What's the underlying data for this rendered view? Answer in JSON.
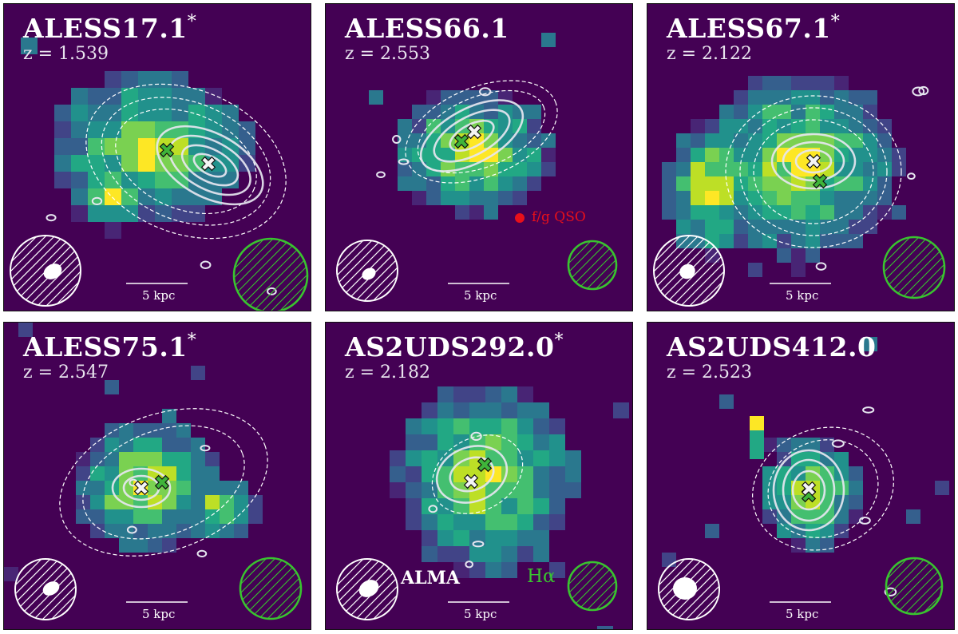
{
  "figure": {
    "panels": [
      {
        "name": "ALESS17.1",
        "star": "*",
        "redshift": "z = 1.539",
        "scale": "5 kpc"
      },
      {
        "name": "ALESS66.1",
        "star": "",
        "redshift": "z = 2.553",
        "scale": "5 kpc",
        "qso_label": "f/g QSO"
      },
      {
        "name": "ALESS67.1",
        "star": "*",
        "redshift": "z = 2.122",
        "scale": "5 kpc"
      },
      {
        "name": "ALESS75.1",
        "star": "*",
        "redshift": "z = 2.547",
        "scale": "5 kpc"
      },
      {
        "name": "AS2UDS292.0",
        "star": "*",
        "redshift": "z = 2.182",
        "scale": "5 kpc",
        "alma_label": "ALMA",
        "ha_label": "Hα"
      },
      {
        "name": "AS2UDS412.0",
        "star": "",
        "redshift": "z = 2.523",
        "scale": "5 kpc"
      }
    ],
    "colors": {
      "background": "#440154",
      "colormap": [
        "#482575",
        "#414487",
        "#355f8d",
        "#2a788e",
        "#21918c",
        "#22a884",
        "#44bf70",
        "#7ad151",
        "#bddf26",
        "#fde725"
      ],
      "alma_contour": "#e6e6f0",
      "halpha_beam": "#39c42f",
      "alma_marker": "#f4f4f4",
      "halpha_marker": "#3fb43a",
      "qso_marker": "#e8101a"
    }
  }
}
